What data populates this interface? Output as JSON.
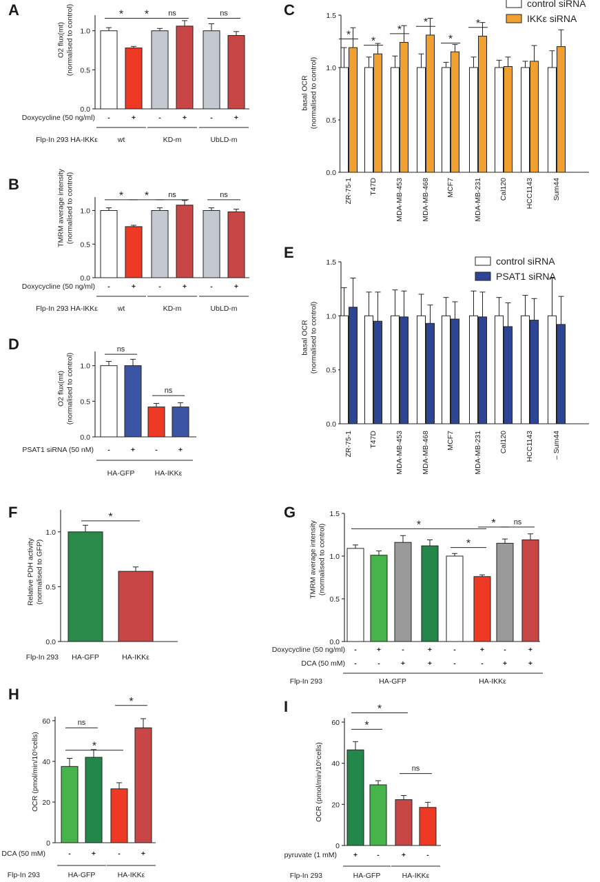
{
  "colors": {
    "white": "#ffffff",
    "orange": "#f0a030",
    "blue": "#3b54a3",
    "blueE": "#2e4596",
    "grey": "#c4c8d0",
    "grey2": "#9a9a9a",
    "red": "#ee3a24",
    "darkred": "#c94646",
    "lightgreen": "#46b44a",
    "darkgreen": "#2a8a4a",
    "darkgreen2": "#23874a"
  },
  "chart_data": [
    {
      "panel": "A",
      "type": "bar",
      "ylabel": [
        "O2 flux(mt)",
        "(normalised to control)"
      ],
      "ylim": [
        0,
        1.2
      ],
      "yticks": [
        0,
        0.5,
        1.0
      ],
      "ytick_labels": [
        "0.0",
        "0.5",
        "1.0"
      ],
      "values": [
        1.0,
        0.78,
        1.0,
        1.06,
        1.0,
        0.94
      ],
      "errors": [
        0.04,
        0.02,
        0.03,
        0.07,
        0.09,
        0.05
      ],
      "colors": [
        "white",
        "red",
        "grey",
        "darkred",
        "grey",
        "darkred"
      ],
      "cond_rows": [
        {
          "label": "Doxycycline (50 ng/ml)",
          "marks": [
            "-",
            "+",
            "-",
            "+",
            "-",
            "+"
          ]
        }
      ],
      "group_prefix": "Flp-In 293  HA-IKKε",
      "groups": [
        {
          "label": "wt",
          "span": [
            0,
            1
          ]
        },
        {
          "label": "KD-m",
          "span": [
            2,
            3
          ]
        },
        {
          "label": "UbLD-m",
          "span": [
            4,
            5
          ]
        }
      ],
      "annotations": [
        {
          "text": "*",
          "span": [
            0,
            1
          ],
          "y": 1.16
        },
        {
          "text": "*",
          "span": [
            1,
            2
          ],
          "y": 1.16
        },
        {
          "text": "ns",
          "span": [
            2,
            3
          ],
          "y": 1.16
        },
        {
          "text": "ns",
          "span": [
            4,
            5
          ],
          "y": 1.16
        }
      ]
    },
    {
      "panel": "B",
      "type": "bar",
      "ylabel": [
        "TMRM average intensity",
        "(normalised to control)"
      ],
      "ylim": [
        0,
        1.2
      ],
      "yticks": [
        0,
        0.5,
        1.0
      ],
      "ytick_labels": [
        "0.0",
        "0.5",
        "1.0"
      ],
      "values": [
        1.0,
        0.76,
        1.0,
        1.08,
        1.0,
        0.98
      ],
      "errors": [
        0.04,
        0.02,
        0.04,
        0.07,
        0.04,
        0.04
      ],
      "colors": [
        "white",
        "red",
        "grey",
        "darkred",
        "grey",
        "darkred"
      ],
      "cond_rows": [
        {
          "label": "Doxycycline (50 ng/ml)",
          "marks": [
            "-",
            "+",
            "-",
            "+",
            "-",
            "+"
          ]
        }
      ],
      "group_prefix": "Flp-In 293  HA-IKKε",
      "groups": [
        {
          "label": "wt",
          "span": [
            0,
            1
          ]
        },
        {
          "label": "KD-m",
          "span": [
            2,
            3
          ]
        },
        {
          "label": "UbLD-m",
          "span": [
            4,
            5
          ]
        }
      ],
      "annotations": [
        {
          "text": "*",
          "span": [
            0,
            1
          ],
          "y": 1.16
        },
        {
          "text": "*",
          "span": [
            1,
            2
          ],
          "y": 1.16
        },
        {
          "text": "ns",
          "span": [
            2,
            3
          ],
          "y": 1.16
        },
        {
          "text": "ns",
          "span": [
            4,
            5
          ],
          "y": 1.16
        }
      ]
    },
    {
      "panel": "C",
      "type": "grouped_bar",
      "ylabel": [
        "basal OCR",
        "(normalised to control)"
      ],
      "ylim": [
        0,
        1.5
      ],
      "yticks": [
        0,
        0.5,
        1.0,
        1.5
      ],
      "ytick_labels": [
        "0.0",
        "0.5",
        "1.0",
        "1.5"
      ],
      "categories": [
        "ZR-75-1",
        "T47D",
        "MDA-MB-453",
        "MDA-MB-468",
        "MCF7",
        "MDA-MB-231",
        "Cal120",
        "HCC1143",
        "Sum44"
      ],
      "series": [
        {
          "name": "control siRNA",
          "color": "white",
          "values": [
            1.0,
            1.0,
            1.0,
            1.0,
            1.0,
            1.0,
            1.0,
            1.0,
            1.0
          ],
          "errors": [
            0.19,
            0.1,
            0.11,
            0.13,
            0.05,
            0.1,
            0.07,
            0.06,
            0.16
          ]
        },
        {
          "name": "IKKε siRNA",
          "color": "orange",
          "values": [
            1.19,
            1.13,
            1.24,
            1.31,
            1.15,
            1.3,
            1.01,
            1.06,
            1.2
          ],
          "errors": [
            0.19,
            0.1,
            0.16,
            0.16,
            0.07,
            0.13,
            0.09,
            0.15,
            0.16
          ]
        }
      ],
      "sig": [
        "*",
        "*",
        "*",
        "*",
        "*",
        "*",
        "",
        "",
        ""
      ],
      "legend": "top-right"
    },
    {
      "panel": "D",
      "type": "bar",
      "ylabel": [
        "O2 flux(mt)",
        "(normalised to control)"
      ],
      "ylim": [
        0,
        1.2
      ],
      "yticks": [
        0,
        0.5,
        1.0
      ],
      "ytick_labels": [
        "0.0",
        "0.5",
        "1.0"
      ],
      "values": [
        1.0,
        1.0,
        0.42,
        0.42
      ],
      "errors": [
        0.06,
        0.09,
        0.05,
        0.06
      ],
      "colors": [
        "white",
        "blue",
        "red",
        "blue"
      ],
      "cond_rows": [
        {
          "label": "PSAT1 siRNA (50 nM)",
          "marks": [
            "-",
            "+",
            "-",
            "+"
          ]
        }
      ],
      "group_prefix": "",
      "groups": [
        {
          "label": "HA-GFP",
          "span": [
            0,
            1
          ]
        },
        {
          "label": "HA-IKKε",
          "span": [
            2,
            3
          ]
        }
      ],
      "annotations": [
        {
          "text": "ns",
          "span": [
            0,
            1
          ],
          "y": 1.16
        },
        {
          "text": "ns",
          "span": [
            2,
            3
          ],
          "y": 0.58
        }
      ]
    },
    {
      "panel": "E",
      "type": "grouped_bar",
      "ylabel": [
        "basal OCR",
        "(normalised to control)"
      ],
      "ylim": [
        0,
        1.5
      ],
      "yticks": [
        0,
        0.5,
        1.0,
        1.5
      ],
      "ytick_labels": [
        "0.0",
        "0.5",
        "1.0",
        "1.5"
      ],
      "categories": [
        "ZR-75-1",
        "T47D",
        "MDA-MB-453",
        "MDA-MB-468",
        "MCF7",
        "MDA-MB-231",
        "Cal120",
        "HCC1143",
        "– Sum44"
      ],
      "series": [
        {
          "name": "control siRNA",
          "color": "white",
          "values": [
            1.0,
            1.0,
            1.0,
            1.0,
            1.0,
            1.0,
            1.0,
            1.0,
            1.0
          ],
          "errors": [
            0.26,
            0.22,
            0.24,
            0.2,
            0.17,
            0.23,
            0.17,
            0.19,
            0.35
          ]
        },
        {
          "name": "PSAT1 siRNA",
          "color": "blueE",
          "values": [
            1.08,
            0.95,
            0.99,
            0.93,
            0.97,
            0.99,
            0.9,
            0.96,
            0.92
          ],
          "errors": [
            0.27,
            0.27,
            0.24,
            0.17,
            0.16,
            0.23,
            0.22,
            0.2,
            0.26
          ]
        }
      ],
      "sig": [
        "",
        "",
        "",
        "",
        "",
        "",
        "",
        "",
        ""
      ],
      "legend": "top-right"
    },
    {
      "panel": "F",
      "type": "bar",
      "ylabel": [
        "Relative PDH activity",
        "(normalised to GFP)"
      ],
      "ylim": [
        0,
        1.2
      ],
      "yticks": [
        0,
        0.5,
        1.0
      ],
      "ytick_labels": [
        "0.0",
        "0.5",
        "1.0"
      ],
      "values": [
        1.0,
        0.64
      ],
      "errors": [
        0.06,
        0.04
      ],
      "colors": [
        "darkgreen",
        "darkred"
      ],
      "cond_rows": [],
      "group_prefix": "Flp-In 293",
      "groups": [
        {
          "label": "HA-GFP",
          "span": [
            0,
            0
          ]
        },
        {
          "label": "HA-IKKε",
          "span": [
            1,
            1
          ]
        }
      ],
      "annotations": [
        {
          "text": "*",
          "span": [
            0,
            1
          ],
          "y": 1.1
        }
      ]
    },
    {
      "panel": "G",
      "type": "bar",
      "ylabel": [
        "TMRM average intensity",
        "(normalised to control)"
      ],
      "ylim": [
        0,
        1.5
      ],
      "yticks": [
        0,
        0.5,
        1.0,
        1.5
      ],
      "ytick_labels": [
        "0.0",
        "0.5",
        "1.0",
        "1.5"
      ],
      "values": [
        1.09,
        1.01,
        1.16,
        1.12,
        1.0,
        0.76,
        1.15,
        1.19
      ],
      "errors": [
        0.04,
        0.05,
        0.08,
        0.07,
        0.03,
        0.02,
        0.05,
        0.07
      ],
      "colors": [
        "white",
        "lightgreen",
        "grey2",
        "darkgreen2",
        "white",
        "red",
        "grey2",
        "darkred"
      ],
      "cond_rows": [
        {
          "label": "Doxycycline (50 ng/ml)",
          "marks": [
            "-",
            "+",
            "-",
            "+",
            "-",
            "+",
            "-",
            "+"
          ]
        },
        {
          "label": "DCA (50 mM)",
          "marks": [
            "-",
            "-",
            "+",
            "+",
            "-",
            "-",
            "+",
            "+"
          ]
        }
      ],
      "group_prefix": "Flp-In 293",
      "groups": [
        {
          "label": "HA-GFP",
          "span": [
            0,
            3
          ]
        },
        {
          "label": "HA-IKKε",
          "span": [
            4,
            7
          ]
        }
      ],
      "annotations": [
        {
          "text": "*",
          "span": [
            0,
            5
          ],
          "y": 1.32
        },
        {
          "text": "*",
          "span": [
            4,
            5
          ],
          "y": 1.1
        },
        {
          "text": "*",
          "span": [
            5,
            6
          ],
          "y": 1.34
        },
        {
          "text": "ns",
          "span": [
            6,
            7
          ],
          "y": 1.34
        }
      ]
    },
    {
      "panel": "H",
      "type": "bar",
      "ylabel": [
        "OCR (pmol/min/10⁶cells)"
      ],
      "ylim": [
        0,
        62
      ],
      "yticks": [
        0,
        20,
        40,
        60
      ],
      "ytick_labels": [
        "0",
        "20",
        "40",
        "60"
      ],
      "values": [
        37.5,
        42,
        26.5,
        56.5
      ],
      "errors": [
        4,
        3.8,
        3,
        4.5
      ],
      "colors": [
        "lightgreen",
        "darkgreen2",
        "red",
        "darkred"
      ],
      "cond_rows": [
        {
          "label": "DCA (50 mM)",
          "marks": [
            "-",
            "+",
            "-",
            "+"
          ]
        }
      ],
      "group_prefix": "Flp-In 293",
      "groups": [
        {
          "label": "HA-GFP",
          "span": [
            0,
            1
          ]
        },
        {
          "label": "HA-IKKε",
          "span": [
            2,
            3
          ]
        }
      ],
      "annotations": [
        {
          "text": "ns",
          "span": [
            0,
            1
          ],
          "y": 56.5
        },
        {
          "text": "*",
          "span": [
            0,
            2
          ],
          "y": 45.5
        },
        {
          "text": "*",
          "span": [
            2,
            3
          ],
          "y": 67.5
        }
      ]
    },
    {
      "panel": "I",
      "type": "bar",
      "ylabel": [
        "OCR (pmol/min/10⁶cells)"
      ],
      "ylim": [
        0,
        62
      ],
      "yticks": [
        0,
        20,
        40,
        60
      ],
      "ytick_labels": [
        "0",
        "20",
        "40",
        "60"
      ],
      "values": [
        46.5,
        29.5,
        22.3,
        18.5
      ],
      "errors": [
        4,
        2,
        2,
        2.5
      ],
      "colors": [
        "darkgreen2",
        "lightgreen",
        "darkred",
        "red"
      ],
      "cond_rows": [
        {
          "label": "pyruvate (1 mM)",
          "marks": [
            "+",
            "-",
            "+",
            "-"
          ]
        }
      ],
      "group_prefix": "Flp-In 293",
      "groups": [
        {
          "label": "HA-GFP",
          "span": [
            0,
            1
          ]
        },
        {
          "label": "HA-IKKε",
          "span": [
            2,
            3
          ]
        }
      ],
      "annotations": [
        {
          "text": "*",
          "span": [
            0,
            2
          ],
          "y": 64.5
        },
        {
          "text": "*",
          "span": [
            0,
            1
          ],
          "y": 56.5
        },
        {
          "text": "ns",
          "span": [
            2,
            3
          ],
          "y": 35
        }
      ]
    }
  ]
}
